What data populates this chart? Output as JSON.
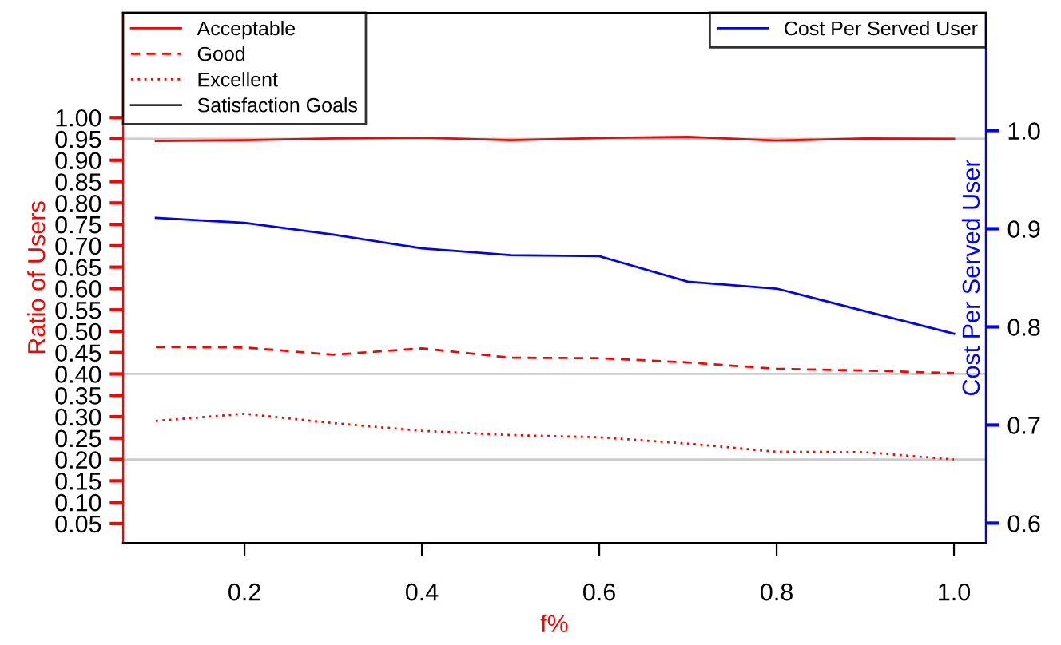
{
  "chart_data": {
    "type": "line",
    "xlabel": "f%",
    "ylabel": "Ratio of Users",
    "y2label": "Cost Per Served User",
    "x": [
      0.1,
      0.2,
      0.3,
      0.4,
      0.5,
      0.6,
      0.7,
      0.8,
      0.9,
      1.0
    ],
    "series": [
      {
        "name": "Acceptable",
        "color": "#ff0000",
        "line_style": "solid",
        "values": [
          0.945,
          0.947,
          0.951,
          0.953,
          0.947,
          0.952,
          0.955,
          0.946,
          0.951,
          0.95
        ]
      },
      {
        "name": "Good",
        "color": "#ff0000",
        "line_style": "dashed",
        "values": [
          0.463,
          0.462,
          0.445,
          0.46,
          0.438,
          0.437,
          0.427,
          0.412,
          0.408,
          0.402
        ]
      },
      {
        "name": "Excellent",
        "color": "#ff0000",
        "line_style": "dotted",
        "values": [
          0.29,
          0.307,
          0.285,
          0.267,
          0.257,
          0.252,
          0.237,
          0.218,
          0.217,
          0.2
        ]
      },
      {
        "name": "Cost Per Served User",
        "color": "#0000ff",
        "line_style": "solid",
        "axis": "y2",
        "values": [
          0.911,
          0.906,
          0.894,
          0.88,
          0.873,
          0.872,
          0.846,
          0.839,
          0.816,
          0.793
        ]
      }
    ],
    "ref_lines": [
      {
        "axis": "y",
        "value": 0.95,
        "label": "Satisfaction Goals",
        "color": "#cccccc"
      },
      {
        "axis": "y",
        "value": 0.4,
        "color": "#cccccc"
      },
      {
        "axis": "y",
        "value": 0.2,
        "color": "#cccccc"
      }
    ],
    "xlim": [
      0.063,
      1.036
    ],
    "xticks": [
      {
        "value": 0.2,
        "label": "0.2"
      },
      {
        "value": 0.4,
        "label": "0.4"
      },
      {
        "value": 0.6,
        "label": "0.6"
      },
      {
        "value": 0.8,
        "label": "0.8"
      },
      {
        "value": 1.0,
        "label": "1.0"
      }
    ],
    "ylim": [
      0.005,
      1.245
    ],
    "yticks": [
      {
        "value": 0.05,
        "label": "0.05"
      },
      {
        "value": 0.1,
        "label": "0.10"
      },
      {
        "value": 0.15,
        "label": "0.15"
      },
      {
        "value": 0.2,
        "label": "0.20"
      },
      {
        "value": 0.25,
        "label": "0.25"
      },
      {
        "value": 0.3,
        "label": "0.30"
      },
      {
        "value": 0.35,
        "label": "0.35"
      },
      {
        "value": 0.4,
        "label": "0.40"
      },
      {
        "value": 0.45,
        "label": "0.45"
      },
      {
        "value": 0.5,
        "label": "0.50"
      },
      {
        "value": 0.55,
        "label": "0.55"
      },
      {
        "value": 0.6,
        "label": "0.60"
      },
      {
        "value": 0.65,
        "label": "0.65"
      },
      {
        "value": 0.7,
        "label": "0.70"
      },
      {
        "value": 0.75,
        "label": "0.75"
      },
      {
        "value": 0.8,
        "label": "0.80"
      },
      {
        "value": 0.85,
        "label": "0.85"
      },
      {
        "value": 0.9,
        "label": "0.90"
      },
      {
        "value": 0.95,
        "label": "0.95"
      },
      {
        "value": 1.0,
        "label": "1.00"
      }
    ],
    "y2lim": [
      0.58,
      1.12
    ],
    "y2ticks": [
      {
        "value": 0.6,
        "label": "0.6"
      },
      {
        "value": 0.7,
        "label": "0.7"
      },
      {
        "value": 0.8,
        "label": "0.8"
      },
      {
        "value": 0.9,
        "label": "0.9"
      },
      {
        "value": 1.0,
        "label": "1.0"
      }
    ],
    "legend": "top left",
    "grid": false,
    "marker": "none"
  }
}
